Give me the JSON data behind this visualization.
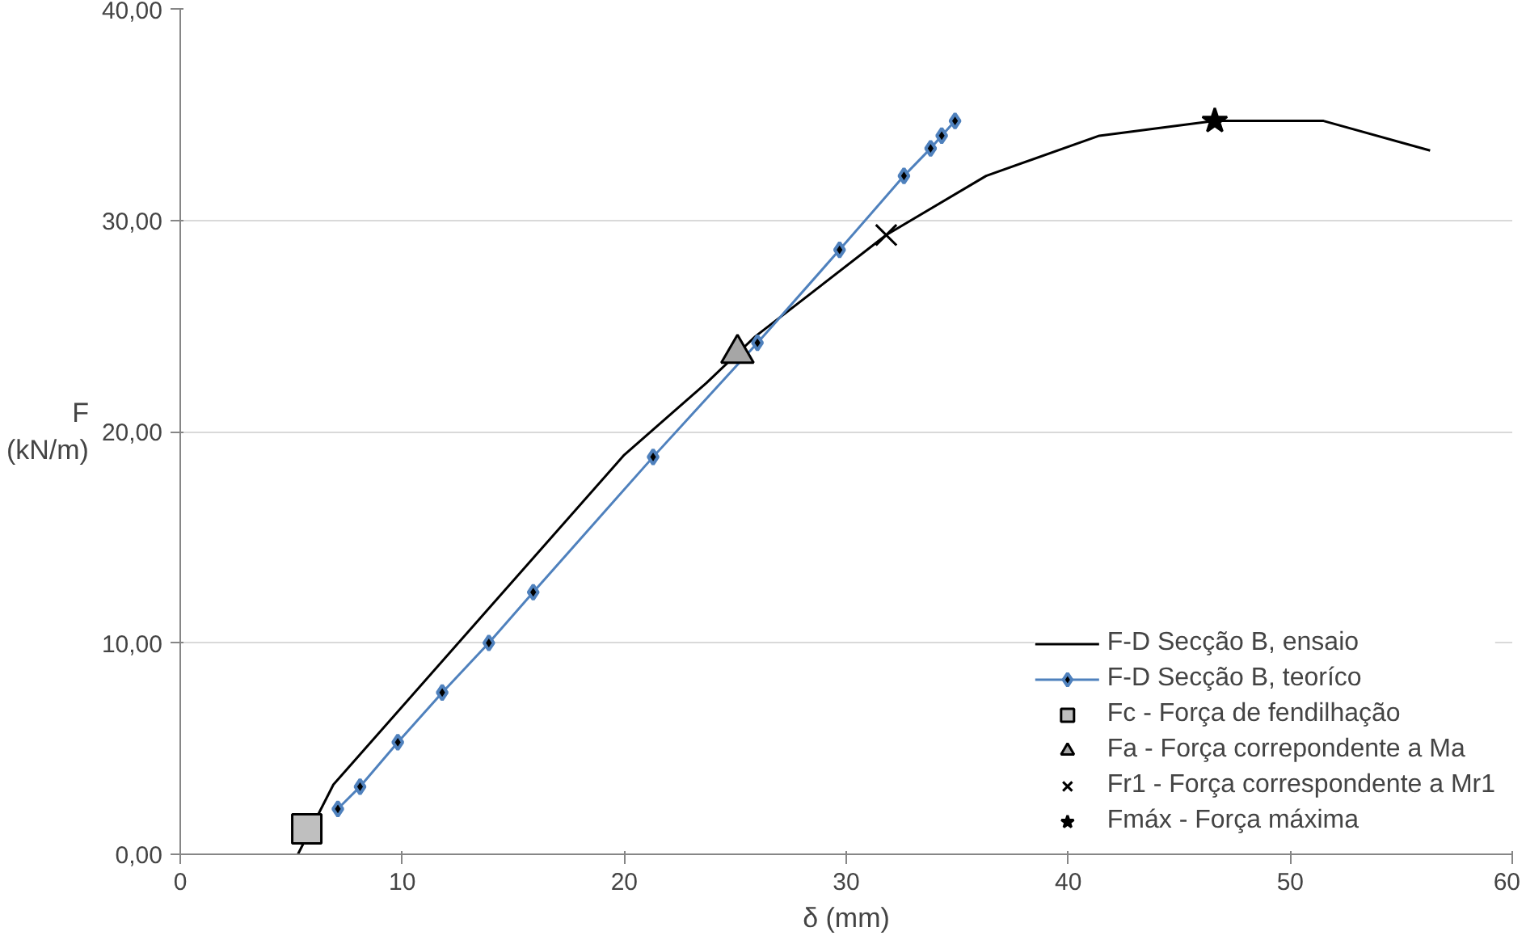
{
  "chart_data": {
    "type": "line",
    "xlabel": "δ (mm)",
    "ylabel": "F\n(kN/m)",
    "xlim": [
      0,
      60
    ],
    "xticks": [
      0,
      10,
      20,
      30,
      40,
      50,
      60
    ],
    "ylim": [
      0,
      40
    ],
    "yticks": [
      {
        "value": 0,
        "label": "0,00"
      },
      {
        "value": 10,
        "label": "10,00"
      },
      {
        "value": 20,
        "label": "20,00"
      },
      {
        "value": 30,
        "label": "30,00"
      },
      {
        "value": 40,
        "label": "40,00"
      }
    ],
    "grid": "y",
    "legend": "bottom right",
    "series": [
      {
        "name": "F-D Secção B, ensaio",
        "marker": "none",
        "color": "#000000",
        "x": [
          5.3,
          6.9,
          20.0,
          23.7,
          25.1,
          25.9,
          31.8,
          36.3,
          41.4,
          46.6,
          51.5,
          56.3
        ],
        "values": [
          0,
          3.3,
          18.9,
          22.3,
          23.7,
          24.5,
          29.3,
          32.1,
          34.0,
          34.7,
          34.7,
          33.3
        ]
      },
      {
        "name": "F-D Secção B, teoríco",
        "marker": "diamond",
        "color": "#4f81bd",
        "x": [
          7.1,
          8.1,
          9.8,
          11.8,
          13.9,
          15.9,
          21.3,
          26.0,
          29.7,
          32.6,
          33.8,
          34.3,
          34.9
        ],
        "values": [
          2.15,
          3.2,
          5.3,
          7.65,
          10.0,
          12.4,
          18.8,
          24.2,
          28.6,
          32.1,
          33.4,
          34.0,
          34.7
        ]
      },
      {
        "name": "Fc - Força de fendilhação",
        "type": "scatter",
        "marker": "square",
        "color": "#bfbfbf",
        "x": [
          5.7
        ],
        "values": [
          1.2
        ]
      },
      {
        "name": "Fa - Força correpondente a Ma",
        "type": "scatter",
        "marker": "triangle",
        "color": "#a6a6a6",
        "x": [
          25.1
        ],
        "values": [
          23.7
        ]
      },
      {
        "name": "Fr1 - Força correspondente a Mr1",
        "type": "scatter",
        "marker": "cross",
        "color": "#000000",
        "x": [
          31.8
        ],
        "values": [
          29.3
        ]
      },
      {
        "name": "Fmáx - Força máxima",
        "type": "scatter",
        "marker": "star",
        "color": "#000000",
        "x": [
          46.6
        ],
        "values": [
          34.7
        ]
      }
    ]
  }
}
